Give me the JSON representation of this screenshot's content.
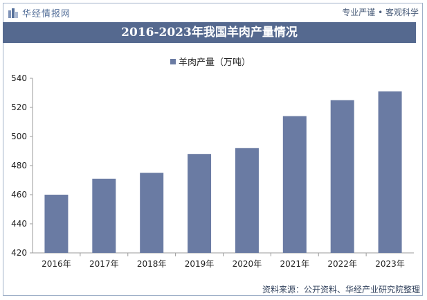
{
  "brand": {
    "name": "华经情报网",
    "tagline": "专业严谨 • 客观科学"
  },
  "title": "2016-2023年我国羊肉产量情况",
  "source": "资料来源：公开资料、华经产业研究院整理",
  "colors": {
    "bar": "#6a7ba3",
    "title_bg": "#55698f",
    "brand": "#55709a"
  },
  "chart_data": {
    "type": "bar",
    "title": "2016-2023年我国羊肉产量情况",
    "categories": [
      "2016年",
      "2017年",
      "2018年",
      "2019年",
      "2020年",
      "2021年",
      "2022年",
      "2023年"
    ],
    "series": [
      {
        "name": "羊肉产量（万吨）",
        "values": [
          460,
          471,
          475,
          488,
          492,
          514,
          525,
          531
        ]
      }
    ],
    "yticks": [
      420,
      440,
      460,
      480,
      500,
      520,
      540
    ],
    "ylim": [
      420,
      540
    ],
    "xlabel": "",
    "ylabel": "",
    "grid": false,
    "legend": "top-center"
  }
}
